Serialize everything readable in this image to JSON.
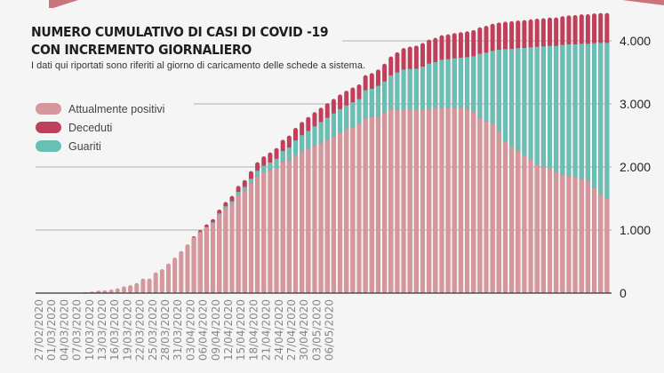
{
  "header": {
    "title_line1": "NUMERO CUMULATIVO DI CASI DI COVID -19",
    "title_line2": "CON INCREMENTO GIORNALIERO",
    "subtitle": "I dati qui riportati sono riferiti al giorno di caricamento delle schede a sistema."
  },
  "legend": [
    {
      "label": "Attualmente positivi",
      "color": "#d4979c"
    },
    {
      "label": "Deceduti",
      "color": "#c0405c"
    },
    {
      "label": "Guariti",
      "color": "#68c0b5"
    }
  ],
  "chart_data": {
    "type": "bar",
    "stacked": true,
    "title": "NUMERO CUMULATIVO DI CASI DI COVID -19 CON INCREMENTO GIORNALIERO",
    "ylim": [
      0,
      4500
    ],
    "y_ticks": [
      0,
      1000,
      2000,
      3000,
      4000
    ],
    "y_tick_labels": [
      "0",
      "1.000",
      "2.000",
      "3.000",
      "4.000"
    ],
    "y_axis_position": "right",
    "grid": true,
    "legend_position": "top-left",
    "x_tick_labels": [
      "27/02/2020",
      "01/03/2020",
      "04/03/2020",
      "07/03/2020",
      "10/03/2020",
      "13/03/2020",
      "16/03/2020",
      "19/03/2020",
      "22/03/2020",
      "25/03/2020",
      "28/03/2020",
      "31/03/2020",
      "03/04/2020",
      "06/04/2020",
      "09/04/2020",
      "12/04/2020",
      "15/04/2020",
      "18/04/2020",
      "21/04/2020",
      "24/04/2020",
      "27/04/2020",
      "30/04/2020",
      "03/05/2020",
      "06/05/2020"
    ],
    "series": [
      {
        "name": "Attualmente positivi",
        "color": "#d4979c",
        "values": [
          0,
          0,
          0,
          0,
          0,
          0,
          0,
          14,
          23,
          38,
          42,
          56,
          75,
          108,
          127,
          160,
          230,
          230,
          329,
          380,
          469,
          563,
          667,
          775,
          881,
          970,
          1049,
          1114,
          1244,
          1346,
          1415,
          1555,
          1623,
          1744,
          1850,
          1909,
          1940,
          1980,
          2082,
          2108,
          2190,
          2244,
          2283,
          2335,
          2382,
          2430,
          2483,
          2542,
          2591,
          2630,
          2676,
          2770,
          2793,
          2793,
          2864,
          2920,
          2911,
          2901,
          2901,
          2901,
          2911,
          2920,
          2934,
          2934,
          2934,
          2934,
          2934,
          2920,
          2873,
          2779,
          2723,
          2676,
          2559,
          2394,
          2324,
          2254,
          2183,
          2113,
          2042,
          1995,
          1972,
          1925,
          1878,
          1855,
          1831,
          1808,
          1784,
          1667,
          1549,
          1502
        ]
      },
      {
        "name": "Guariti",
        "color": "#68c0b5",
        "values": [
          0,
          0,
          0,
          0,
          0,
          0,
          0,
          0,
          0,
          0,
          0,
          0,
          0,
          0,
          0,
          0,
          0,
          0,
          0,
          0,
          0,
          0,
          0,
          0,
          0,
          0,
          0,
          10,
          20,
          30,
          40,
          50,
          60,
          70,
          90,
          110,
          130,
          150,
          170,
          200,
          230,
          260,
          290,
          310,
          330,
          350,
          365,
          375,
          385,
          395,
          399,
          446,
          447,
          493,
          493,
          531,
          587,
          644,
          653,
          658,
          681,
          719,
          728,
          766,
          775,
          789,
          799,
          822,
          883,
          1015,
          1090,
          1165,
          1300,
          1475,
          1549,
          1629,
          1704,
          1784,
          1864,
          1916,
          1948,
          1995,
          2057,
          2089,
          2113,
          2145,
          2169,
          2296,
          2418,
          2465
        ]
      },
      {
        "name": "Deceduti",
        "color": "#c0405c",
        "values": [
          0,
          0,
          0,
          0,
          0,
          0,
          0,
          0,
          0,
          0,
          0,
          0,
          0,
          0,
          0,
          0,
          0,
          0,
          0,
          0,
          0,
          0,
          0,
          0,
          20,
          30,
          40,
          50,
          60,
          70,
          85,
          95,
          110,
          120,
          135,
          150,
          160,
          170,
          180,
          190,
          200,
          210,
          220,
          225,
          228,
          230,
          232,
          233,
          234,
          235,
          235,
          240,
          250,
          260,
          280,
          300,
          320,
          340,
          355,
          365,
          375,
          380,
          385,
          390,
          395,
          400,
          405,
          410,
          415,
          420,
          425,
          430,
          432,
          435,
          438,
          440,
          442,
          444,
          446,
          448,
          450,
          452,
          455,
          460,
          465,
          468,
          470,
          472,
          474,
          475
        ]
      }
    ]
  }
}
